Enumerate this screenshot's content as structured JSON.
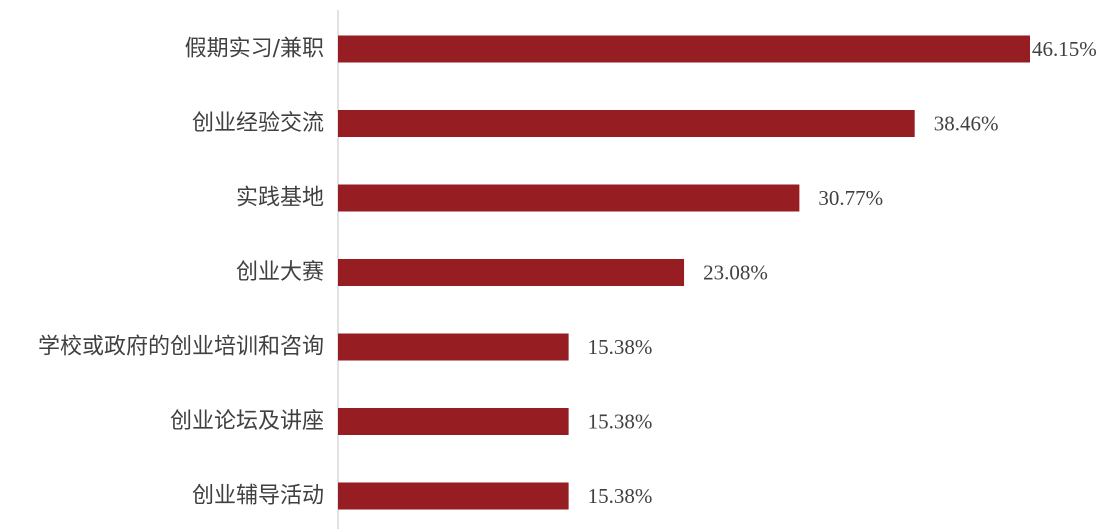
{
  "chart_data": {
    "type": "bar",
    "orientation": "horizontal",
    "categories": [
      "假期实习/兼职",
      "创业经验交流",
      "实践基地",
      "创业大赛",
      "学校或政府的创业培训和咨询",
      "创业论坛及讲座",
      "创业辅导活动"
    ],
    "values": [
      46.15,
      38.46,
      30.77,
      23.08,
      15.38,
      15.38,
      15.38
    ],
    "data_labels": [
      "46.15%",
      "38.46%",
      "30.77%",
      "23.08%",
      "15.38%",
      "15.38%",
      "15.38%"
    ],
    "value_unit": "%",
    "xlim": [
      0,
      46.15
    ],
    "grid": false,
    "legend": "none",
    "bar_color": "#961E22",
    "axis_color": "#D9D9D9"
  }
}
